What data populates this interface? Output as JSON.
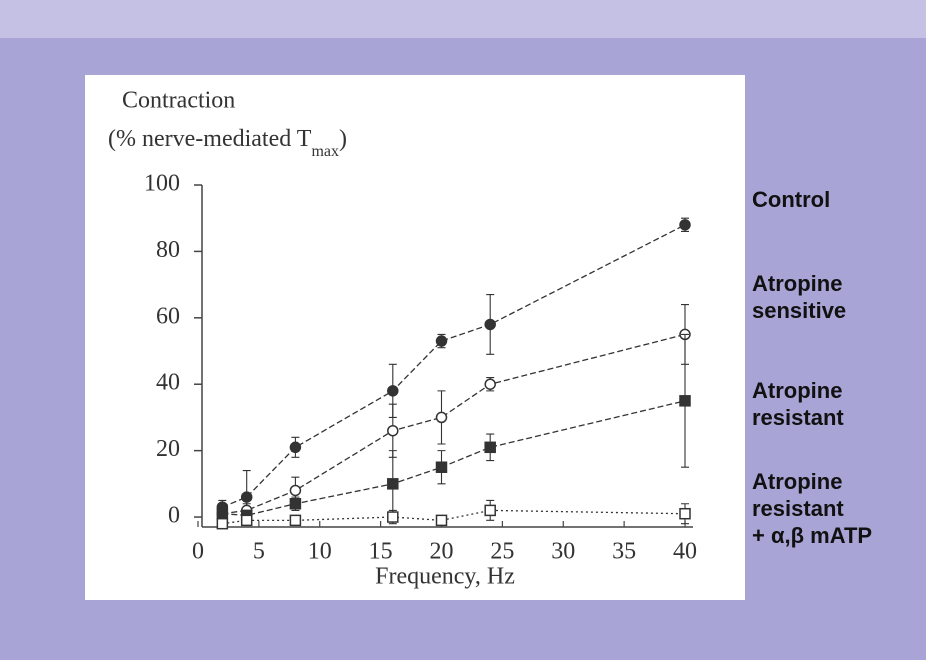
{
  "chart_data": {
    "type": "line",
    "y_label_line1": "Contraction",
    "y_label_line2": "(% nerve-mediated T",
    "y_label_sub": "max",
    "y_label_end": ")",
    "x_label": "Frequency, Hz",
    "x": [
      2,
      4,
      8,
      16,
      20,
      24,
      40
    ],
    "xlim": [
      0,
      40
    ],
    "xticks": [
      0,
      5,
      10,
      15,
      20,
      25,
      30,
      35,
      40
    ],
    "ylim": [
      -3,
      100
    ],
    "yticks": [
      0,
      20,
      40,
      60,
      80,
      100
    ],
    "series": [
      {
        "name": "Control",
        "marker": "filled-circle",
        "color": "#333333",
        "values": [
          3,
          6,
          21,
          38,
          53,
          58,
          88
        ],
        "errors": [
          2,
          8,
          3,
          8,
          2,
          9,
          2
        ]
      },
      {
        "name": "Atropine\nsensitive",
        "marker": "open-circle",
        "color": "#333333",
        "values": [
          1,
          2,
          8,
          26,
          30,
          40,
          55
        ],
        "errors": [
          1,
          2,
          4,
          8,
          8,
          2,
          9
        ]
      },
      {
        "name": "Atropine\nresistant",
        "marker": "filled-square",
        "color": "#333333",
        "values": [
          1,
          0.5,
          4,
          10,
          15,
          21,
          35
        ],
        "errors": [
          1,
          1,
          2,
          10,
          5,
          4,
          20
        ]
      },
      {
        "name": "Atropine\nresistant\n+ α,β mATP",
        "marker": "open-square",
        "color": "#333333",
        "values": [
          -2,
          -1,
          -1,
          0,
          -1,
          2,
          1
        ],
        "errors": [
          1,
          1,
          1,
          2,
          1,
          3,
          3
        ]
      }
    ]
  }
}
